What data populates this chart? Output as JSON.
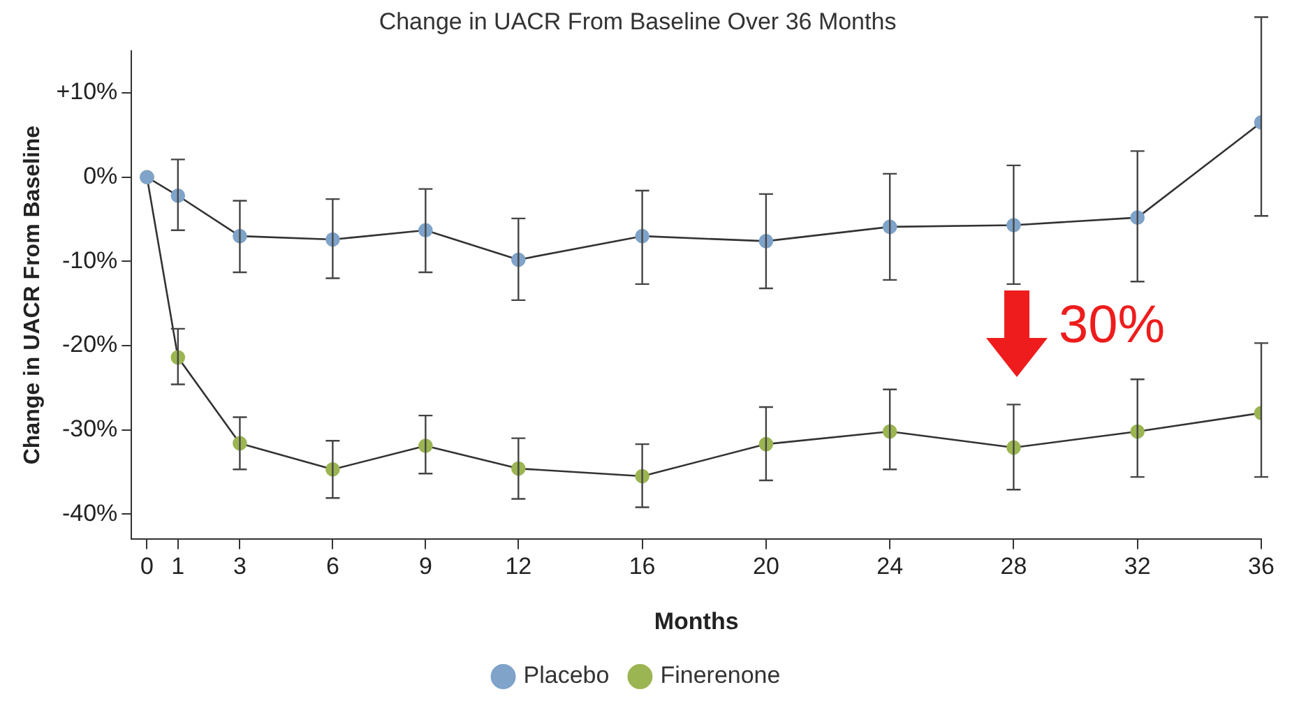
{
  "chart_data": {
    "type": "line",
    "title": "Change in UACR From Baseline Over 36 Months",
    "xlabel": "Months",
    "ylabel": "Change in UACR From Baseline",
    "x": [
      0,
      1,
      3,
      6,
      9,
      12,
      16,
      20,
      24,
      28,
      32,
      36
    ],
    "xlim": [
      -0.5,
      36
    ],
    "xticks": [
      0,
      1,
      3,
      6,
      9,
      12,
      16,
      20,
      24,
      28,
      32,
      36
    ],
    "ylim": [
      -43,
      15
    ],
    "yticks": [
      {
        "value": 10,
        "label": "+10%"
      },
      {
        "value": 0,
        "label": "0%"
      },
      {
        "value": -10,
        "label": "-10%"
      },
      {
        "value": -20,
        "label": "-20%"
      },
      {
        "value": -30,
        "label": "-30%"
      },
      {
        "value": -40,
        "label": "-40%"
      }
    ],
    "grid": false,
    "legend": "bottom",
    "marker": "circle",
    "line_style": "solid",
    "series": [
      {
        "name": "Placebo",
        "color": "#7fa3c9",
        "values": [
          0,
          -2.2,
          -7,
          -7.4,
          -6.3,
          -9.8,
          -7,
          -7.6,
          -5.9,
          -5.7,
          -4.8,
          6.5
        ],
        "errors": [
          null,
          [
            -6.3,
            2.1
          ],
          [
            -11.3,
            -2.8
          ],
          [
            -12,
            -2.6
          ],
          [
            -11.3,
            -1.4
          ],
          [
            -14.6,
            -4.9
          ],
          [
            -12.7,
            -1.6
          ],
          [
            -13.2,
            -2
          ],
          [
            -12.2,
            0.4
          ],
          [
            -12.7,
            1.4
          ],
          [
            -12.4,
            3.1
          ],
          [
            -4.6,
            19
          ]
        ]
      },
      {
        "name": "Finerenone",
        "color": "#9bb552",
        "values": [
          0,
          -21.4,
          -31.6,
          -34.7,
          -31.9,
          -34.6,
          -35.5,
          -31.7,
          -30.2,
          -32.1,
          -30.2,
          -28
        ],
        "errors": [
          null,
          [
            -24.6,
            -18
          ],
          [
            -34.7,
            -28.5
          ],
          [
            -38.1,
            -31.3
          ],
          [
            -35.2,
            -28.3
          ],
          [
            -38.2,
            -31
          ],
          [
            -39.2,
            -31.7
          ],
          [
            -36,
            -27.3
          ],
          [
            -34.7,
            -25.2
          ],
          [
            -37.1,
            -27
          ],
          [
            -35.6,
            -24
          ],
          [
            -35.6,
            -19.7
          ]
        ]
      }
    ],
    "annotations": [
      "30%"
    ]
  }
}
